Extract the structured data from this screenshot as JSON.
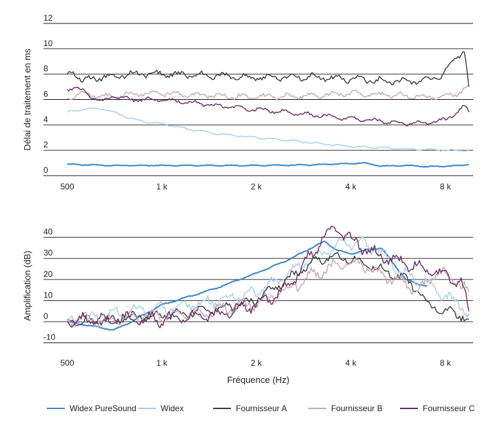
{
  "chart_data": [
    {
      "type": "line",
      "title": "",
      "ylabel": "Délai de traitement en ms",
      "xlabel": "",
      "xscale": "log",
      "xlim": [
        420,
        9800
      ],
      "ylim": [
        0,
        12
      ],
      "yticks": [
        0,
        2,
        4,
        6,
        8,
        10,
        12
      ],
      "ytick_labels": [
        "0",
        "2",
        "4",
        "6",
        "8",
        "10",
        "12"
      ],
      "xticks": [
        500,
        1000,
        2000,
        4000,
        8000
      ],
      "xtick_labels": [
        "500",
        "1 k",
        "2 k",
        "4 k",
        "8 k"
      ],
      "grid": "horizontal",
      "series": [
        {
          "name": "Widex PureSound",
          "color": "#3b86c6",
          "noise": 0.05,
          "x": [
            500,
            700,
            1000,
            1500,
            2000,
            3000,
            4000,
            4400,
            5000,
            6000,
            7000,
            8000,
            9000,
            9500
          ],
          "y": [
            0.9,
            0.8,
            0.8,
            0.8,
            0.8,
            0.85,
            0.95,
            1.0,
            0.75,
            0.8,
            0.7,
            0.75,
            0.8,
            0.9
          ]
        },
        {
          "name": "Widex",
          "color": "#a8cde8",
          "noise": 0.1,
          "x": [
            500,
            550,
            650,
            700,
            800,
            900,
            1000,
            1200,
            1500,
            2000,
            2500,
            3000,
            4000,
            5000,
            6000,
            7000,
            8000,
            9000,
            9500
          ],
          "y": [
            5.0,
            5.2,
            5.3,
            5.0,
            4.5,
            4.2,
            4.1,
            3.7,
            3.3,
            3.0,
            2.8,
            2.6,
            2.3,
            2.2,
            2.1,
            2.05,
            2.0,
            2.0,
            2.0
          ]
        },
        {
          "name": "Fournisseur A",
          "color": "#3d3d3d",
          "noise": 0.35,
          "x": [
            500,
            520,
            560,
            650,
            800,
            1000,
            1500,
            2000,
            3000,
            4000,
            5000,
            6000,
            7000,
            7700,
            8200,
            8800,
            9200,
            9500
          ],
          "y": [
            8.0,
            8.2,
            7.5,
            7.8,
            8.0,
            8.0,
            7.9,
            7.7,
            7.8,
            7.6,
            7.5,
            7.4,
            7.5,
            7.8,
            8.5,
            9.5,
            10.0,
            7.0
          ]
        },
        {
          "name": "Fournisseur B",
          "color": "#c7a6b4",
          "noise": 0.3,
          "x": [
            500,
            550,
            650,
            800,
            1000,
            1500,
            2000,
            3000,
            4000,
            5000,
            6000,
            7000,
            8000,
            9000,
            9500
          ],
          "y": [
            6.1,
            6.5,
            6.2,
            6.4,
            6.5,
            6.3,
            6.2,
            6.3,
            6.5,
            6.4,
            6.3,
            6.2,
            6.3,
            6.6,
            7.0
          ]
        },
        {
          "name": "Fournisseur C",
          "color": "#6a2d63",
          "noise": 0.22,
          "x": [
            500,
            530,
            600,
            650,
            700,
            800,
            1000,
            1200,
            1500,
            2000,
            2500,
            3000,
            4000,
            5000,
            6000,
            7000,
            8000,
            8500,
            9000,
            9300,
            9500
          ],
          "y": [
            6.8,
            7.0,
            6.2,
            5.8,
            6.3,
            6.0,
            6.0,
            5.8,
            5.5,
            5.2,
            5.0,
            4.8,
            4.5,
            4.3,
            4.1,
            4.15,
            4.4,
            4.8,
            5.3,
            5.4,
            5.0
          ]
        }
      ]
    },
    {
      "type": "line",
      "title": "",
      "ylabel": "Amplification (dB)",
      "xlabel": "Fréquence (Hz)",
      "xscale": "log",
      "xlim": [
        420,
        9800
      ],
      "ylim": [
        -14,
        48
      ],
      "yticks": [
        -10,
        0,
        10,
        20,
        30,
        40
      ],
      "ytick_labels": [
        "-10",
        "0",
        "10",
        "20",
        "30",
        "40"
      ],
      "xticks": [
        500,
        1000,
        2000,
        4000,
        8000
      ],
      "xtick_labels": [
        "500",
        "1 k",
        "2 k",
        "4 k",
        "8 k"
      ],
      "grid": "horizontal",
      "series": [
        {
          "name": "Widex PureSound",
          "color": "#3b86c6",
          "noise": 0.4,
          "x": [
            500,
            600,
            700,
            800,
            1000,
            1500,
            2000,
            2500,
            3000,
            3300,
            3600,
            4000,
            4500,
            5000,
            5500,
            6000,
            6500,
            7000
          ],
          "y": [
            0,
            -2,
            -4,
            0,
            8,
            16,
            23,
            29,
            35,
            38,
            34,
            32,
            34,
            35,
            27,
            20,
            18,
            17
          ]
        },
        {
          "name": "Widex",
          "color": "#a8cde8",
          "noise": 4,
          "x": [
            500,
            600,
            700,
            800,
            1000,
            1200,
            1500,
            2000,
            2500,
            3000,
            3500,
            4000,
            4500,
            5000,
            6000,
            7000,
            8000,
            9000,
            9500
          ],
          "y": [
            0,
            2,
            3,
            5,
            6,
            8,
            10,
            14,
            22,
            30,
            35,
            37,
            36,
            33,
            22,
            18,
            12,
            8,
            4
          ]
        },
        {
          "name": "Fournisseur A",
          "color": "#3d3d3d",
          "noise": 3,
          "x": [
            500,
            600,
            800,
            1000,
            1200,
            1500,
            2000,
            2500,
            3000,
            3500,
            4000,
            4500,
            5000,
            5500,
            6000,
            6500,
            7000,
            8000,
            9000,
            9500
          ],
          "y": [
            1,
            0,
            2,
            3,
            4,
            6,
            10,
            20,
            28,
            31,
            30,
            27,
            25,
            22,
            20,
            15,
            8,
            5,
            3,
            1
          ]
        },
        {
          "name": "Fournisseur B",
          "color": "#c7a6b4",
          "noise": 4,
          "x": [
            500,
            600,
            800,
            1000,
            1500,
            2000,
            2500,
            3000,
            3500,
            4000,
            4500,
            5000,
            6000,
            6500,
            7000,
            7500,
            8000,
            9000,
            9500
          ],
          "y": [
            0,
            1,
            2,
            3,
            5,
            9,
            15,
            22,
            26,
            28,
            26,
            22,
            18,
            15,
            18,
            24,
            22,
            18,
            14
          ]
        },
        {
          "name": "Fournisseur C",
          "color": "#6a2d63",
          "noise": 4,
          "x": [
            500,
            600,
            800,
            1000,
            1500,
            2000,
            2500,
            3000,
            3300,
            3600,
            4000,
            4500,
            5000,
            6000,
            7000,
            8000,
            9000,
            9500
          ],
          "y": [
            0,
            1,
            1,
            1,
            3,
            8,
            16,
            32,
            41,
            44,
            39,
            34,
            31,
            28,
            24,
            22,
            18,
            5
          ]
        }
      ]
    }
  ]
}
